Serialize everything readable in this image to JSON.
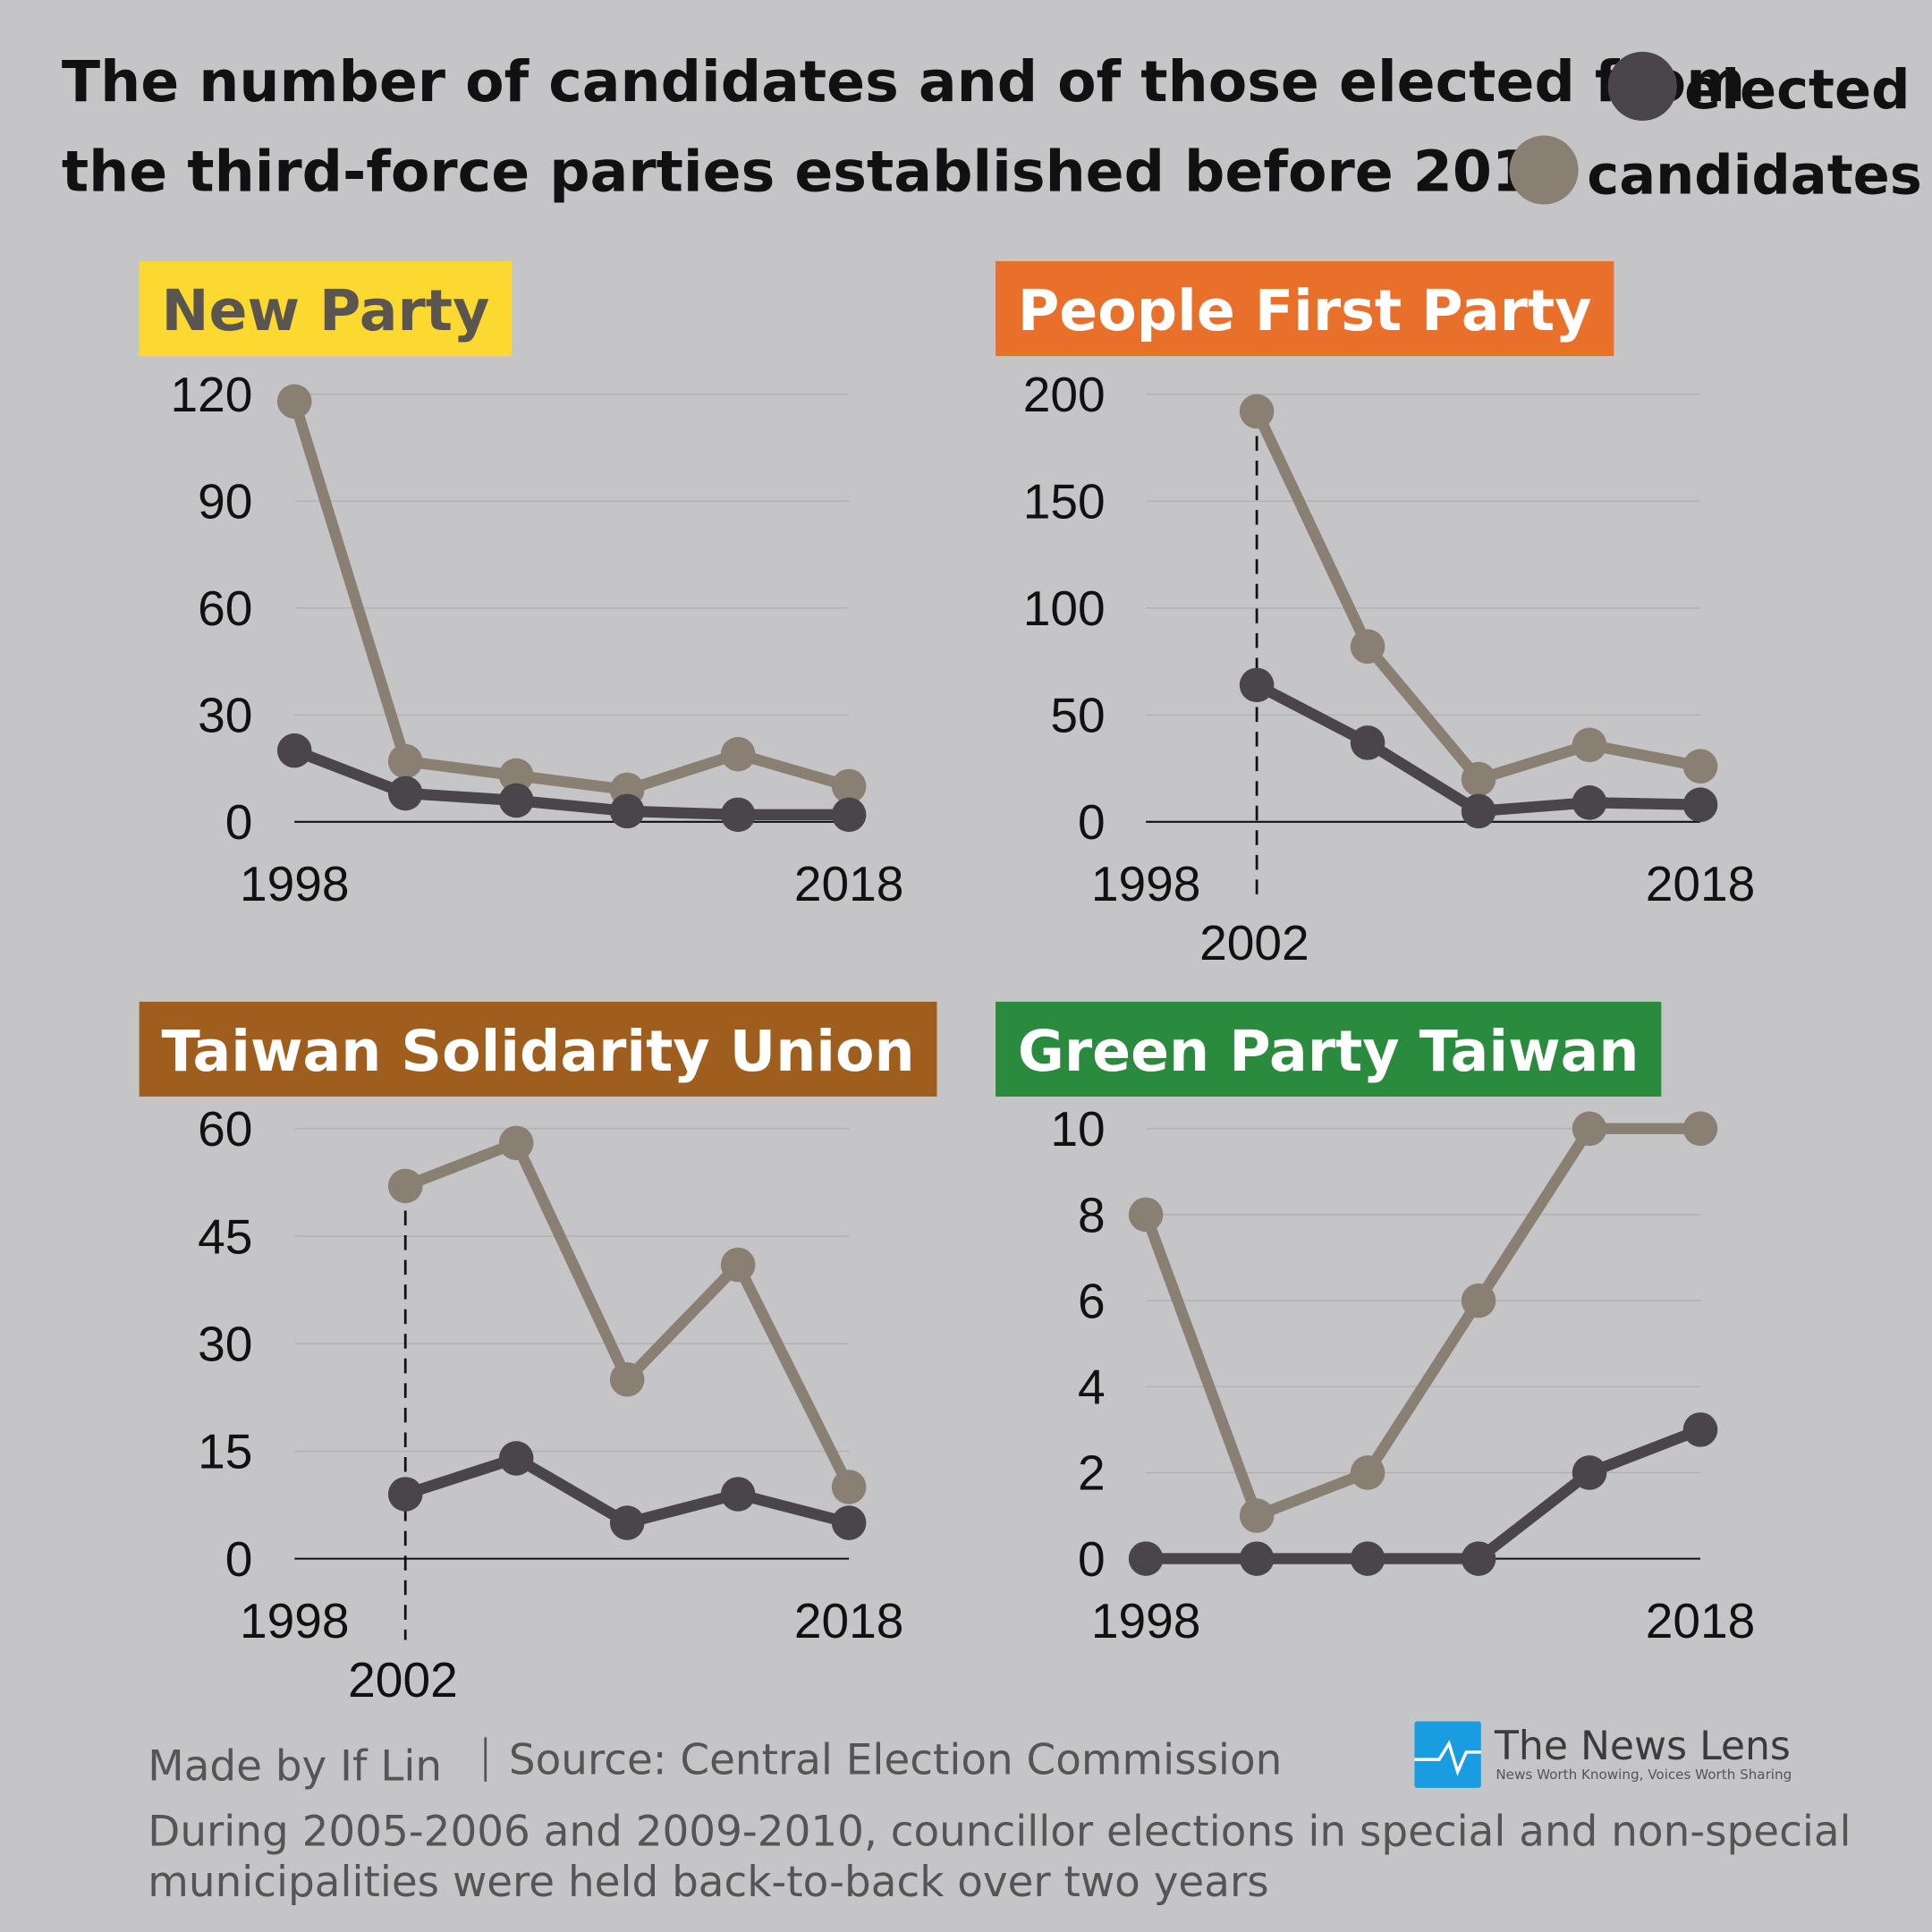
{
  "title": {
    "line1": "The number of candidates and of those elected from",
    "line2": "the third-force parties established before 2014"
  },
  "legend": {
    "elected": "elected",
    "candidates": "candidates"
  },
  "colors": {
    "background": "#c5c5c7",
    "elected": "#4a454b",
    "candidates": "#8a7f73"
  },
  "chart_data": [
    {
      "type": "line",
      "title": "New Party",
      "title_bg": "#fbd930",
      "title_color": "#5a5550",
      "x": [
        1998,
        2002,
        2006,
        2010,
        2014,
        2018
      ],
      "x_tick_labels": [
        "1998",
        "2018"
      ],
      "y_ticks": [
        0,
        30,
        60,
        90,
        120
      ],
      "ylim": [
        0,
        120
      ],
      "grid": true,
      "marker_year_label": null,
      "series": [
        {
          "name": "candidates",
          "values": [
            118,
            17,
            13,
            9,
            19,
            10
          ]
        },
        {
          "name": "elected",
          "values": [
            20,
            8,
            6,
            3,
            2,
            2
          ]
        }
      ]
    },
    {
      "type": "line",
      "title": "People First Party",
      "title_bg": "#e8702a",
      "title_color": "#ffffff",
      "x": [
        1998,
        2002,
        2006,
        2010,
        2014,
        2018
      ],
      "x_tick_labels": [
        "1998",
        "2018"
      ],
      "y_ticks": [
        0,
        50,
        100,
        150,
        200
      ],
      "ylim": [
        0,
        200
      ],
      "grid": true,
      "marker_year_label": "2002",
      "series": [
        {
          "name": "candidates",
          "values": [
            null,
            192,
            82,
            20,
            36,
            26
          ]
        },
        {
          "name": "elected",
          "values": [
            null,
            64,
            37,
            5,
            9,
            8
          ]
        }
      ]
    },
    {
      "type": "line",
      "title": "Taiwan Solidarity Union",
      "title_bg": "#a05e1e",
      "title_color": "#ffffff",
      "x": [
        1998,
        2002,
        2006,
        2010,
        2014,
        2018
      ],
      "x_tick_labels": [
        "1998",
        "2018"
      ],
      "y_ticks": [
        0,
        15,
        30,
        45,
        60
      ],
      "ylim": [
        0,
        60
      ],
      "grid": true,
      "marker_year_label": "2002",
      "series": [
        {
          "name": "candidates",
          "values": [
            null,
            52,
            58,
            25,
            41,
            10
          ]
        },
        {
          "name": "elected",
          "values": [
            null,
            9,
            14,
            5,
            9,
            5
          ]
        }
      ]
    },
    {
      "type": "line",
      "title": "Green Party Taiwan",
      "title_bg": "#2a8a3e",
      "title_color": "#ffffff",
      "x": [
        1998,
        2002,
        2006,
        2010,
        2014,
        2018
      ],
      "x_tick_labels": [
        "1998",
        "2018"
      ],
      "y_ticks": [
        0,
        2,
        4,
        6,
        8,
        10
      ],
      "ylim": [
        0,
        10
      ],
      "grid": true,
      "marker_year_label": null,
      "series": [
        {
          "name": "candidates",
          "values": [
            8,
            1,
            2,
            6,
            10,
            10
          ]
        },
        {
          "name": "elected",
          "values": [
            0,
            0,
            0,
            0,
            2,
            3
          ]
        }
      ]
    }
  ],
  "footer": {
    "author": "Made by If Lin",
    "source": "Source: Central Election Commission",
    "note_line1": "During 2005-2006 and 2009-2010, councillor elections in special and non-special",
    "note_line2": "municipalities were held back-to-back over two years",
    "logo_name": "The News Lens",
    "logo_tagline": "News Worth Knowing, Voices Worth Sharing",
    "logo_color": "#1a9de0"
  }
}
